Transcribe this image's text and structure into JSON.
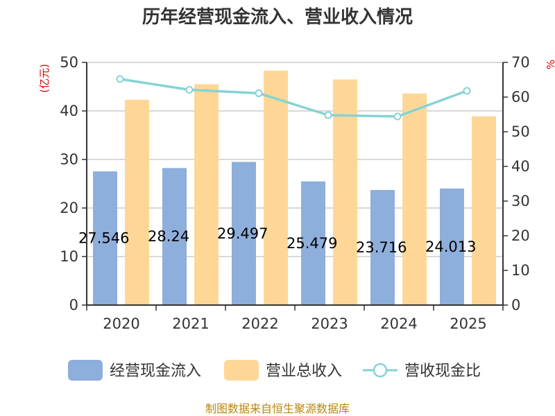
{
  "chart_data": {
    "type": "bar",
    "title": "历年经营现金流入、营业收入情况",
    "categories": [
      "2020",
      "2021",
      "2022",
      "2023",
      "2024",
      "2025"
    ],
    "series": [
      {
        "name": "经营现金流入",
        "type": "bar",
        "axis": "left",
        "values": [
          27.546,
          28.24,
          29.497,
          25.479,
          23.716,
          24.013
        ],
        "color": "#8eaedb"
      },
      {
        "name": "营业总收入",
        "type": "bar",
        "axis": "left",
        "values": [
          42.3,
          45.5,
          48.3,
          46.5,
          43.6,
          38.9
        ],
        "color": "#fed797"
      },
      {
        "name": "营收现金比",
        "type": "line",
        "axis": "right",
        "values": [
          65.2,
          62.1,
          61.1,
          54.8,
          54.4,
          61.8
        ],
        "color": "#86d2d6"
      }
    ],
    "data_labels": [
      "27.546",
      "28.24",
      "29.497",
      "25.479",
      "23.716",
      "24.013"
    ],
    "left_axis": {
      "label": "(亿元)",
      "ylim": [
        0,
        50
      ],
      "ticks": [
        "0",
        "10",
        "20",
        "30",
        "40",
        "50"
      ]
    },
    "right_axis": {
      "label": "%",
      "ylim": [
        0,
        70
      ],
      "ticks": [
        "0",
        "10",
        "20",
        "30",
        "40",
        "50",
        "60",
        "70"
      ]
    },
    "grid": true,
    "legend": "bottom"
  },
  "footer": {
    "source": "制图数据来自恒生聚源数据库"
  }
}
